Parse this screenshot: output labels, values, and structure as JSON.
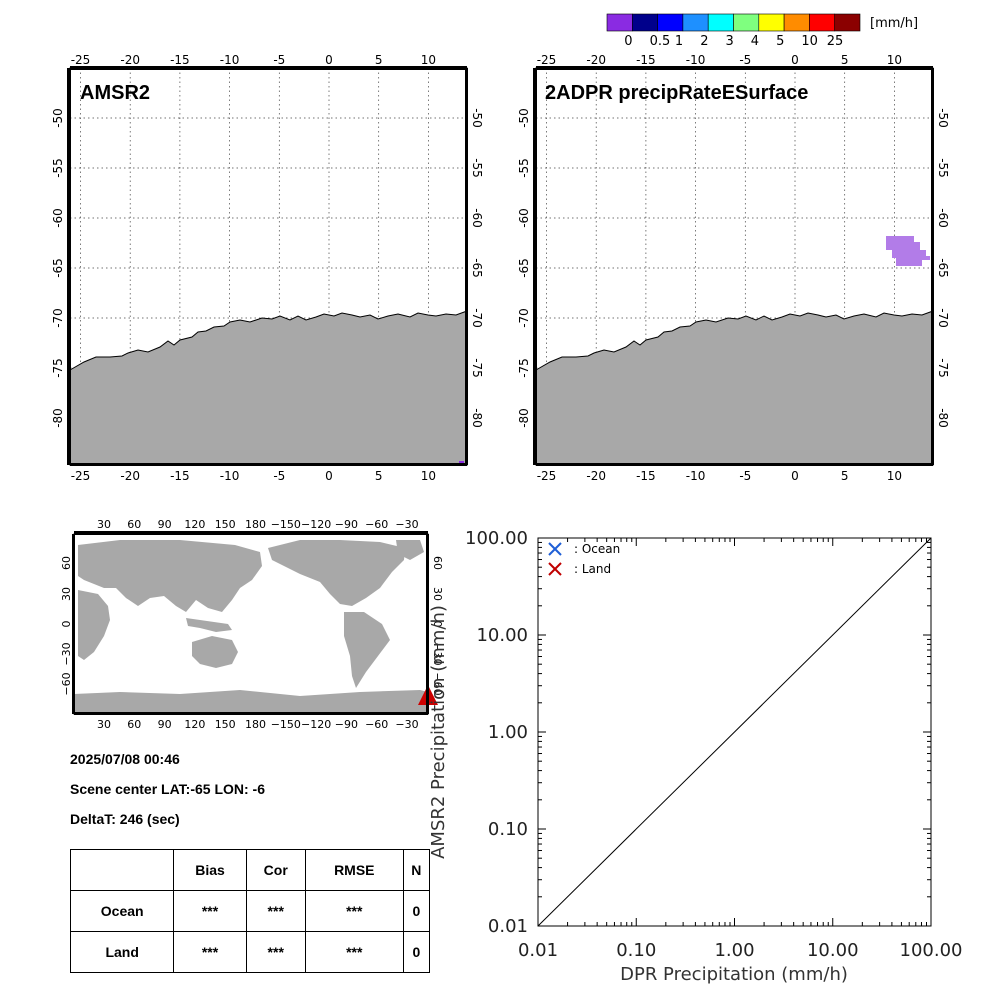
{
  "colorbar": {
    "unit": "[mm/h]",
    "colors": [
      "#8a2be2",
      "#00008b",
      "#0000ff",
      "#1e90ff",
      "#00ffff",
      "#7fff7f",
      "#ffff00",
      "#ff8c00",
      "#ff0000",
      "#8b0000"
    ],
    "labels": [
      "0",
      "0.5",
      "1",
      "2",
      "3",
      "4",
      "5",
      "10",
      "25"
    ]
  },
  "map_left": {
    "title": "AMSR2",
    "lon_ticks": [
      "-25",
      "-20",
      "-15",
      "-10",
      "-5",
      "0",
      "5",
      "10"
    ],
    "lat_ticks": [
      "-50",
      "-55",
      "-60",
      "-65",
      "-70",
      "-75",
      "-80"
    ]
  },
  "map_right": {
    "title": "2ADPR precipRateESurface",
    "lon_ticks": [
      "-25",
      "-20",
      "-15",
      "-10",
      "-5",
      "0",
      "5",
      "10"
    ],
    "lat_ticks": [
      "-50",
      "-55",
      "-60",
      "-65",
      "-70",
      "-75",
      "-80"
    ]
  },
  "world_map": {
    "lon_ticks": [
      "30",
      "60",
      "90",
      "120",
      "150",
      "180",
      "−150",
      "−120",
      "−90",
      "−60",
      "−30"
    ],
    "lat_ticks_left": [
      "60",
      "30",
      "0",
      "−30",
      "−60"
    ],
    "lat_ticks_right": [
      "60",
      "30",
      "0",
      "−30",
      "−60"
    ],
    "marker_color": "#cc0000"
  },
  "info": {
    "datetime": "2025/07/08 00:46",
    "scene_center": "Scene center LAT:-65   LON:  -6",
    "deltat": "DeltaT:  246 (sec)"
  },
  "stats_table": {
    "headers": [
      "",
      "Bias",
      "Cor",
      "RMSE",
      "N"
    ],
    "rows": [
      {
        "label": "Ocean",
        "bias": "***",
        "cor": "***",
        "rmse": "***",
        "n": "0"
      },
      {
        "label": "Land",
        "bias": "***",
        "cor": "***",
        "rmse": "***",
        "n": "0"
      }
    ]
  },
  "chart_data": {
    "type": "scatter",
    "xlabel": "DPR Precipitation (mm/h)",
    "ylabel": "AMSR2 Precipitation (mm/h)",
    "x_scale": "log",
    "y_scale": "log",
    "xlim": [
      0.01,
      100
    ],
    "ylim": [
      0.01,
      100
    ],
    "x_ticks": [
      "0.01",
      "0.10",
      "1.00",
      "10.00",
      "100.00"
    ],
    "y_ticks": [
      "0.01",
      "0.10",
      "1.00",
      "10.00",
      "100.00"
    ],
    "legend_position": "top-left",
    "series": [
      {
        "name": ": Ocean",
        "color": "#1f5fd6",
        "marker": "x",
        "points": []
      },
      {
        "name": ": Land",
        "color": "#c00000",
        "marker": "x",
        "points": []
      }
    ],
    "reference_line": {
      "x": [
        0.01,
        100
      ],
      "y": [
        0.01,
        100
      ]
    }
  }
}
